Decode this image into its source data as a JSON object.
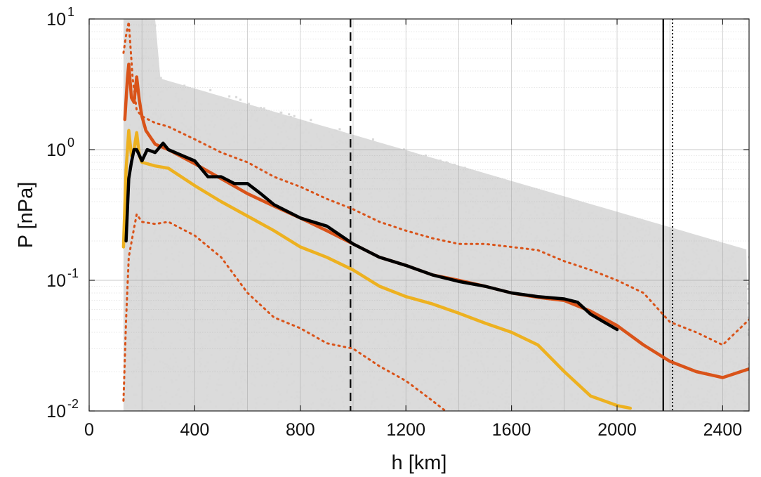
{
  "chart_data": {
    "type": "line",
    "title": "",
    "xlabel": "h [km]",
    "ylabel": "P [nPa]",
    "xlim": [
      0,
      2500
    ],
    "ylim": [
      0.01,
      10
    ],
    "yscale": "log",
    "grid": true,
    "x_ticks": [
      "0",
      "400",
      "800",
      "1200",
      "1600",
      "2000",
      "2400"
    ],
    "x_tick_values": [
      0,
      400,
      800,
      1200,
      1600,
      2000,
      2400
    ],
    "y_ticks": [
      {
        "base": "10",
        "exp": "-2",
        "value": 0.01
      },
      {
        "base": "10",
        "exp": "-1",
        "value": 0.1
      },
      {
        "base": "10",
        "exp": "0",
        "value": 1
      },
      {
        "base": "10",
        "exp": "1",
        "value": 10
      }
    ],
    "vertical_lines": [
      {
        "x": 990,
        "style": "dashed",
        "color": "#111111"
      },
      {
        "x": 2175,
        "style": "solid",
        "color": "#111111"
      },
      {
        "x": 2210,
        "style": "dotted",
        "color": "#111111"
      }
    ],
    "scatter_color": "#d9d9d9",
    "series": [
      {
        "color": "#d95319",
        "style": "solid",
        "x": [
          135,
          145,
          150,
          160,
          170,
          180,
          190,
          200,
          215,
          250,
          300,
          400,
          500,
          600,
          700,
          800,
          900,
          1000,
          1100,
          1200,
          1300,
          1400,
          1500,
          1600,
          1700,
          1800,
          1900,
          2000,
          2100,
          2200,
          2300,
          2400,
          2500
        ],
        "y": [
          1.7,
          3.5,
          4.5,
          2.5,
          2.3,
          3.6,
          2.4,
          1.8,
          1.4,
          1.1,
          1.0,
          0.78,
          0.6,
          0.46,
          0.37,
          0.3,
          0.24,
          0.19,
          0.15,
          0.13,
          0.11,
          0.1,
          0.09,
          0.08,
          0.074,
          0.07,
          0.058,
          0.045,
          0.032,
          0.024,
          0.02,
          0.018,
          0.021
        ]
      },
      {
        "color": "#d95319",
        "style": "dotted",
        "x": [
          130,
          140,
          150,
          165,
          180,
          200,
          250,
          300,
          400,
          500,
          600,
          700,
          800,
          900,
          1000,
          1100,
          1200,
          1300,
          1400,
          1500,
          1600,
          1700,
          1800,
          1900,
          2000,
          2100,
          2200,
          2300,
          2400,
          2500
        ],
        "y": [
          5.5,
          7.5,
          9.5,
          3.5,
          2.0,
          1.8,
          1.6,
          1.5,
          1.2,
          0.95,
          0.8,
          0.62,
          0.52,
          0.42,
          0.35,
          0.28,
          0.24,
          0.21,
          0.19,
          0.19,
          0.18,
          0.17,
          0.14,
          0.12,
          0.1,
          0.08,
          0.048,
          0.04,
          0.032,
          0.05
        ]
      },
      {
        "color": "#d95319",
        "style": "dotted",
        "x": [
          130,
          140,
          150,
          165,
          180,
          200,
          250,
          300,
          400,
          500,
          600,
          700,
          800,
          900,
          1000,
          1100,
          1200,
          1300,
          1350
        ],
        "y": [
          0.012,
          0.05,
          0.15,
          0.22,
          0.32,
          0.28,
          0.27,
          0.28,
          0.22,
          0.15,
          0.08,
          0.052,
          0.043,
          0.033,
          0.03,
          0.022,
          0.017,
          0.012,
          0.01
        ]
      },
      {
        "color": "#edb120",
        "style": "solid",
        "x": [
          130,
          140,
          150,
          160,
          170,
          180,
          190,
          200,
          250,
          300,
          400,
          500,
          600,
          700,
          800,
          900,
          1000,
          1100,
          1200,
          1300,
          1400,
          1500,
          1600,
          1700,
          1800,
          1900,
          2000,
          2050
        ],
        "y": [
          0.18,
          0.7,
          1.4,
          0.9,
          1.0,
          1.35,
          0.9,
          0.8,
          0.75,
          0.72,
          0.53,
          0.4,
          0.31,
          0.24,
          0.18,
          0.15,
          0.12,
          0.09,
          0.075,
          0.066,
          0.056,
          0.047,
          0.04,
          0.032,
          0.02,
          0.013,
          0.011,
          0.0105
        ]
      },
      {
        "color": "#000000",
        "style": "solid",
        "x": [
          140,
          150,
          160,
          170,
          180,
          200,
          220,
          250,
          280,
          300,
          400,
          450,
          500,
          550,
          600,
          650,
          700,
          800,
          900,
          1000,
          1100,
          1200,
          1300,
          1400,
          1500,
          1600,
          1700,
          1800,
          1850,
          1900,
          1950,
          2000
        ],
        "y": [
          0.2,
          0.6,
          0.8,
          1.0,
          1.0,
          0.82,
          1.0,
          0.95,
          1.12,
          1.0,
          0.82,
          0.62,
          0.62,
          0.55,
          0.55,
          0.46,
          0.38,
          0.3,
          0.26,
          0.19,
          0.15,
          0.13,
          0.11,
          0.098,
          0.09,
          0.08,
          0.075,
          0.072,
          0.068,
          0.055,
          0.048,
          0.042
        ]
      }
    ]
  }
}
